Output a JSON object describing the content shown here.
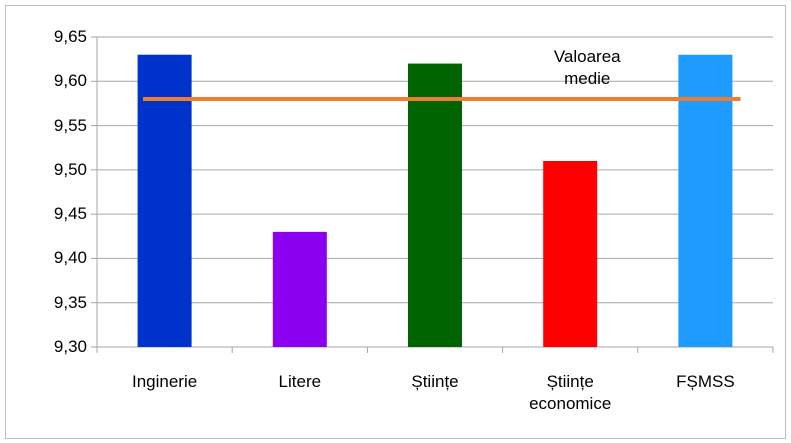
{
  "chart_data": {
    "type": "bar",
    "categories": [
      "Inginerie",
      "Litere",
      "Științe",
      "Științe economice",
      "FȘMSS"
    ],
    "values": [
      9.63,
      9.43,
      9.62,
      9.51,
      9.63
    ],
    "colors": [
      "#0033cc",
      "#8b00ee",
      "#006400",
      "#ff0000",
      "#1e9bff"
    ],
    "ylim": [
      9.3,
      9.65
    ],
    "yticks": [
      {
        "value": 9.3,
        "label": "9,30"
      },
      {
        "value": 9.35,
        "label": "9,35"
      },
      {
        "value": 9.4,
        "label": "9,40"
      },
      {
        "value": 9.45,
        "label": "9,45"
      },
      {
        "value": 9.5,
        "label": "9,50"
      },
      {
        "value": 9.55,
        "label": "9,55"
      },
      {
        "value": 9.6,
        "label": "9,60"
      },
      {
        "value": 9.65,
        "label": "9,65"
      }
    ],
    "grid": true,
    "mean_line": {
      "value": 9.58,
      "label": "Valoarea medie",
      "color": "#ed7d31"
    }
  }
}
